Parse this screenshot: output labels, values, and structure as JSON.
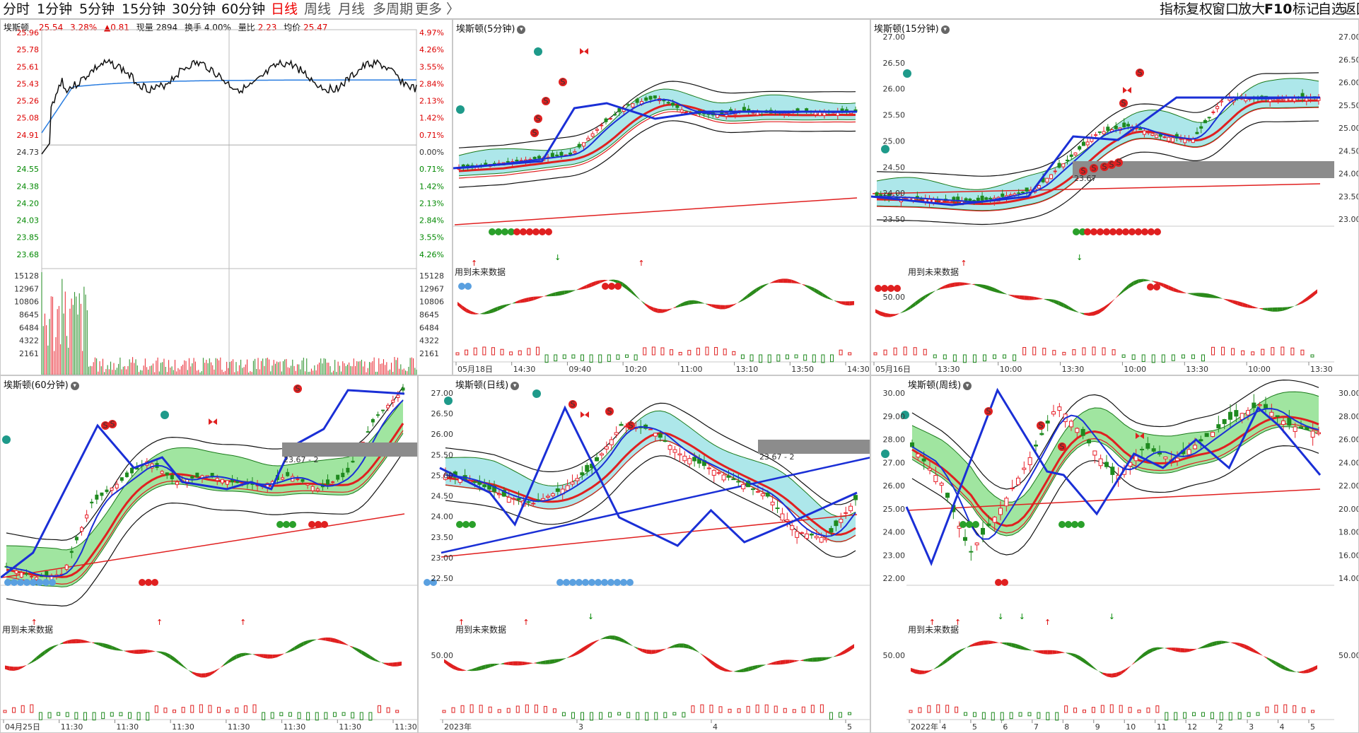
{
  "toolbar": {
    "periods": [
      "分时",
      "1分钟",
      "5分钟",
      "15分钟",
      "30分钟",
      "60分钟",
      "日线",
      "周线",
      "月线",
      "多周期",
      "更多 〉"
    ],
    "active_period": "日线",
    "right_items": [
      "指标",
      "复权",
      "窗口",
      "放大",
      "F10",
      "标记",
      "自选",
      "返回"
    ]
  },
  "intraday": {
    "stock": "埃斯顿",
    "price": "25.54",
    "change_pct": "3.28%",
    "change": "▲0.81",
    "volume_label": "现量",
    "volume": "2894",
    "turnover_label": "换手",
    "turnover": "4.00%",
    "ratio_label": "量比",
    "ratio": "2.23",
    "avg_label": "均价",
    "avg": "25.47",
    "price_ticks": [
      "25.96",
      "25.78",
      "25.61",
      "25.43",
      "25.26",
      "25.08",
      "24.91",
      "24.73",
      "24.55",
      "24.38",
      "24.20",
      "24.03",
      "23.85",
      "23.68"
    ],
    "pct_ticks": [
      "4.97%",
      "4.26%",
      "3.55%",
      "2.84%",
      "2.13%",
      "1.42%",
      "0.71%",
      "0.00%",
      "0.71%",
      "1.42%",
      "2.13%",
      "2.84%",
      "3.55%",
      "4.26%"
    ],
    "vol_ticks": [
      "15128",
      "12967",
      "10806",
      "8645",
      "6484",
      "4322",
      "2161"
    ]
  },
  "panels": [
    {
      "title": "埃斯顿(5分钟)",
      "yticks": [],
      "xticks": [
        "05月18日",
        "14:30",
        "09:40",
        "10:20",
        "11:00",
        "13:10",
        "13:50",
        "14:30"
      ],
      "note": "用到未来数据",
      "osc_tick": ""
    },
    {
      "title": "埃斯顿(15分钟)",
      "yticks": [
        "27.00",
        "26.50",
        "26.00",
        "25.50",
        "25.00",
        "24.50",
        "24.00",
        "23.50"
      ],
      "right_ticks": [
        "27.00",
        "26.50",
        "26.00",
        "25.50",
        "25.00",
        "24.50",
        "24.00",
        "23.50",
        "23.00"
      ],
      "xticks": [
        "05月16日",
        "13:30",
        "10:00",
        "13:30",
        "10:00",
        "13:30",
        "10:00",
        "13:30"
      ],
      "note": "用到未来数据",
      "box_label": "23.67",
      "osc_tick": "50.00"
    },
    {
      "title": "埃斯顿(60分钟)",
      "yticks": [],
      "xticks": [
        "04月25日",
        "11:30",
        "11:30",
        "11:30",
        "11:30",
        "11:30",
        "11:30",
        "11:30"
      ],
      "note": "用到未来数据",
      "box_label": "23.67 - 2",
      "osc_tick": ""
    },
    {
      "title": "埃斯顿(日线)",
      "yticks": [
        "27.00",
        "26.50",
        "26.00",
        "25.50",
        "25.00",
        "24.50",
        "24.00",
        "23.50",
        "23.00",
        "22.50"
      ],
      "xticks": [
        "2023年",
        "3",
        "4",
        "5"
      ],
      "note": "用到未来数据",
      "box_label": "23.67 - 2",
      "osc_tick": "50.00"
    },
    {
      "title": "埃斯顿(周线)",
      "yticks": [
        "30.00",
        "29.00",
        "28.00",
        "27.00",
        "26.00",
        "25.00",
        "24.00",
        "23.00",
        "22.00"
      ],
      "right_ticks": [
        "30.00",
        "28.00",
        "26.00",
        "24.00",
        "22.00",
        "20.00",
        "18.00",
        "16.00",
        "14.00"
      ],
      "xticks": [
        "2022年",
        "4",
        "5",
        "6",
        "7",
        "8",
        "9",
        "10",
        "11",
        "12",
        "2",
        "3",
        "4",
        "5"
      ],
      "note": "用到未来数据",
      "osc_tick": "50.00",
      "right_osc_tick": "50.00"
    }
  ],
  "colors": {
    "up": "#e8202a",
    "down": "#1f8a1f",
    "zigzag": "#1a2fd6",
    "band_cyan": "#9fe3e6",
    "band_green": "#8fe08f"
  }
}
